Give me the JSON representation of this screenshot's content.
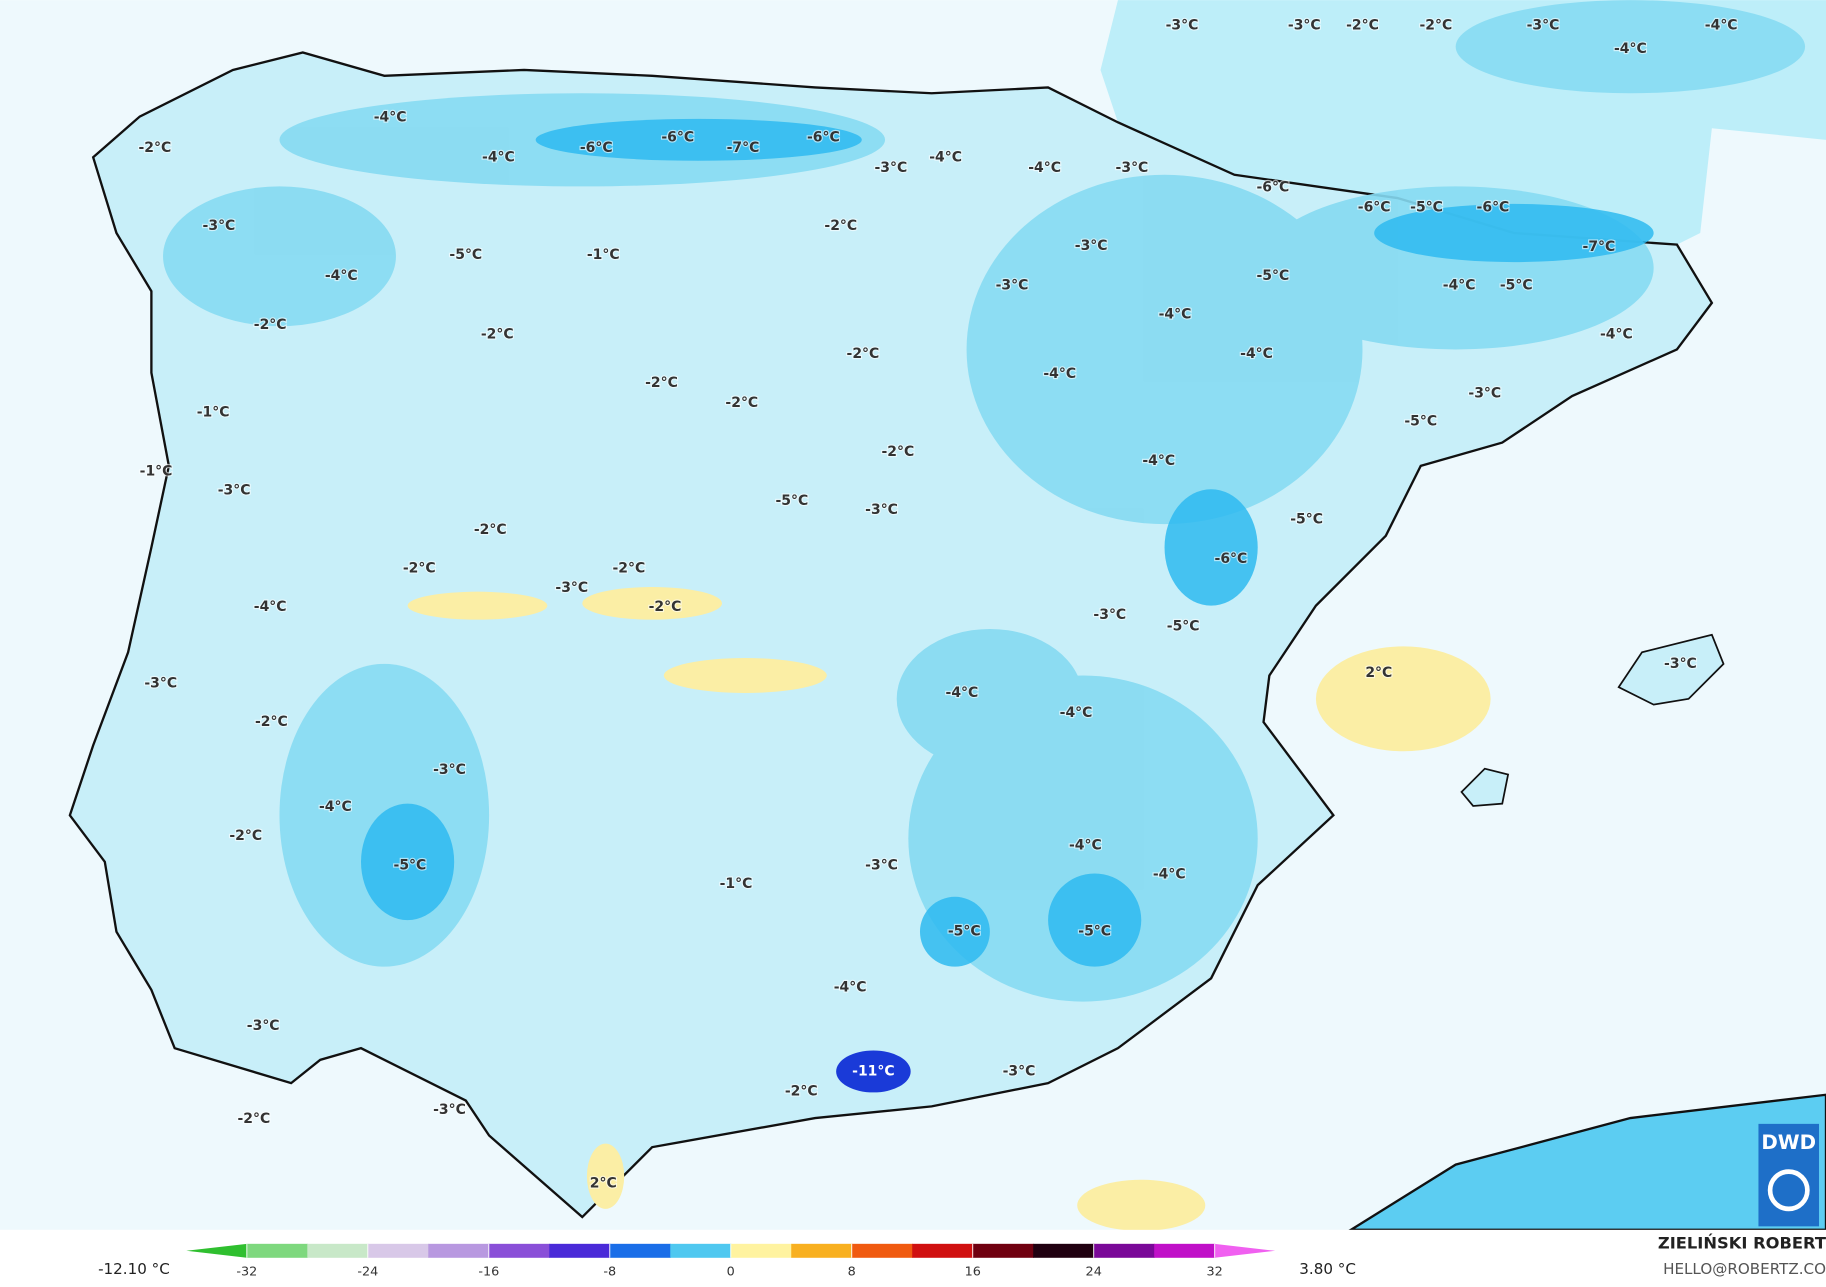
{
  "map": {
    "labels": [
      "-3°C",
      "-3°C",
      "-2°C",
      "-2°C",
      "-3°C",
      "-4°C",
      "-4°C",
      "-4°C",
      "-2°C",
      "-4°C",
      "-6°C",
      "-6°C",
      "-7°C",
      "-6°C",
      "-4°C",
      "-3°C",
      "-4°C",
      "-3°C",
      "-6°C",
      "-6°C",
      "-5°C",
      "-6°C",
      "-7°C",
      "-3°C",
      "-5°C",
      "-1°C",
      "-2°C",
      "-3°C",
      "-4°C",
      "-3°C",
      "-5°C",
      "-4°C",
      "-5°C",
      "-2°C",
      "-2°C",
      "-4°C",
      "-4°C",
      "-2°C",
      "-4°C",
      "-4°C",
      "-2°C",
      "-2°C",
      "-3°C",
      "-1°C",
      "-5°C",
      "-2°C",
      "-4°C",
      "-1°C",
      "-3°C",
      "-5°C",
      "-3°C",
      "-5°C",
      "-2°C",
      "-6°C",
      "-2°C",
      "-2°C",
      "-3°C",
      "-4°C",
      "-2°C",
      "-3°C",
      "-5°C",
      "-3°C",
      "-4°C",
      "-4°C",
      "2°C",
      "-3°C",
      "-2°C",
      "-3°C",
      "-4°C",
      "-2°C",
      "-4°C",
      "-5°C",
      "-3°C",
      "-4°C",
      "-1°C",
      "-5°C",
      "-5°C",
      "-4°C",
      "-3°C",
      "-11°C",
      "-3°C",
      "-2°C",
      "-3°C",
      "-2°C",
      "2°C"
    ]
  },
  "colorbar": {
    "min_label": "-12.10 °C",
    "max_label": "3.80 °C",
    "lim": [
      -36,
      36
    ],
    "ticks": [
      -32,
      -24,
      -16,
      -8,
      0,
      8,
      16,
      24,
      32
    ],
    "colors": [
      "#2fbf2f",
      "#7ed87e",
      "#c8e8c8",
      "#d8c8e8",
      "#b898e0",
      "#8a4fd8",
      "#4a2ad8",
      "#1a6ee8",
      "#4fc8f0",
      "#fff3a0",
      "#f8b020",
      "#f05a10",
      "#d01010",
      "#700010",
      "#200010",
      "#7a0898",
      "#c010c8",
      "#f060f0"
    ]
  },
  "credit": {
    "author": "ZIELIŃSKI ROBERT",
    "contact": "HELLO@ROBERTZ.CO"
  },
  "logo": "DWD"
}
